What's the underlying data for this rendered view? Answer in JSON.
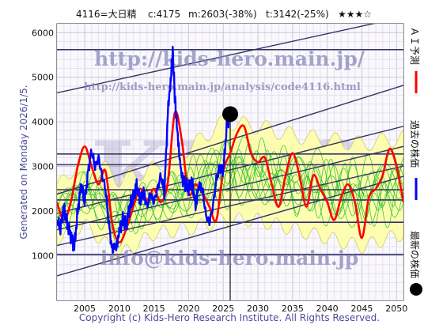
{
  "header": {
    "code_name": "4116=大日精",
    "current": "c:4175",
    "mean": "m:2603(-38%)",
    "target": "t:3142(-25%)",
    "stars": "★★★☆"
  },
  "watermarks": {
    "big": "KIDS",
    "url_main": "http://kids-hero.main.jp/",
    "url_analysis": "http://kids-hero.main.jp/analysis/code4116.html",
    "email": "info@kids-hero.main.jp"
  },
  "side_text": {
    "generated": "Generated on Monday 2026/1/5."
  },
  "legend": {
    "ai_forecast": "ＡＩ予測",
    "past_price": "過去の株価",
    "latest_price": "最新の株価"
  },
  "copyright": "Copyright (c) Kids-Hero Research Institute. All Rights Reserved.",
  "colors": {
    "ai_forecast": "#ff0000",
    "past_price": "#0000ff",
    "latest_price": "#000000",
    "band_fill": "#ffffaa",
    "band_lines": "#22bb22",
    "trend_lines": "#333366",
    "watermark": "#8888bb"
  },
  "chart_data": {
    "type": "line",
    "title": "",
    "xlabel": "",
    "ylabel": "",
    "xlim": [
      2001,
      2051
    ],
    "ylim": [
      0,
      6200
    ],
    "x_ticks": [
      2005,
      2010,
      2015,
      2020,
      2025,
      2030,
      2035,
      2040,
      2045,
      2050
    ],
    "y_ticks": [
      1000,
      2000,
      3000,
      4000,
      5000,
      6000
    ],
    "grid": true,
    "legend_position": "right-vertical",
    "horizontal_levels": [
      5620,
      3280,
      3040,
      2480,
      2250,
      1750,
      1030
    ],
    "vertical_marker_x": 2026.0,
    "latest_point": {
      "x": 2026.0,
      "y": 4175
    },
    "trend_lines": [
      {
        "x": [
          2001,
          2051
        ],
        "y": [
          4650,
          6350
        ]
      },
      {
        "x": [
          2001,
          2051
        ],
        "y": [
          2380,
          4820
        ]
      },
      {
        "x": [
          2001,
          2051
        ],
        "y": [
          1950,
          3900
        ]
      },
      {
        "x": [
          2001,
          2051
        ],
        "y": [
          1580,
          3450
        ]
      },
      {
        "x": [
          2001,
          2051
        ],
        "y": [
          1230,
          3010
        ]
      },
      {
        "x": [
          2001,
          2051
        ],
        "y": [
          550,
          2780
        ]
      }
    ],
    "series": [
      {
        "name": "過去の株価",
        "x": [
          2001.0,
          2001.5,
          2002.0,
          2002.5,
          2003.0,
          2003.5,
          2004.0,
          2004.5,
          2005.0,
          2005.5,
          2006.0,
          2006.5,
          2007.0,
          2007.5,
          2008.0,
          2008.5,
          2009.0,
          2009.3,
          2009.6,
          2010.0,
          2010.5,
          2011.0,
          2011.5,
          2012.0,
          2012.5,
          2013.0,
          2013.5,
          2014.0,
          2014.5,
          2015.0,
          2015.5,
          2016.0,
          2016.5,
          2017.0,
          2017.4,
          2017.7,
          2018.0,
          2018.3,
          2018.7,
          2019.0,
          2019.5,
          2020.0,
          2020.5,
          2021.0,
          2021.5,
          2022.0,
          2022.5,
          2023.0,
          2023.5,
          2024.0,
          2024.5,
          2025.0,
          2025.5,
          2026.0
        ],
        "y": [
          1800,
          1600,
          2100,
          1700,
          1450,
          1200,
          2000,
          2600,
          2200,
          2900,
          3350,
          3000,
          3200,
          2800,
          2500,
          1700,
          1100,
          1250,
          1150,
          1550,
          1800,
          1700,
          2100,
          2300,
          2600,
          2200,
          2450,
          2100,
          2400,
          2200,
          2500,
          2800,
          2400,
          4200,
          4900,
          5600,
          4600,
          3900,
          3200,
          2800,
          2600,
          2500,
          2700,
          2100,
          2600,
          2500,
          1900,
          1750,
          2100,
          2700,
          3000,
          2900,
          3900,
          4175
        ]
      },
      {
        "name": "ＡＩ予測",
        "x": [
          2001,
          2002,
          2003,
          2004,
          2005,
          2006,
          2007,
          2008,
          2009,
          2010,
          2011,
          2012,
          2013,
          2014,
          2015,
          2016,
          2017,
          2018,
          2019,
          2020,
          2021,
          2022,
          2023,
          2024,
          2025,
          2026,
          2027,
          2028,
          2029,
          2030,
          2031,
          2032,
          2033,
          2034,
          2035,
          2036,
          2037,
          2038,
          2039,
          2040,
          2041,
          2042,
          2043,
          2044,
          2045,
          2046,
          2047,
          2048,
          2049,
          2050,
          2051
        ],
        "y": [
          2200,
          1800,
          2200,
          3000,
          3450,
          3000,
          2600,
          2900,
          1700,
          1300,
          1600,
          2100,
          2500,
          2250,
          2500,
          2200,
          2650,
          4200,
          3600,
          2400,
          2600,
          2400,
          2100,
          1800,
          2900,
          3300,
          3750,
          3900,
          3300,
          3100,
          3200,
          2600,
          2100,
          2800,
          3300,
          2800,
          2100,
          2800,
          2500,
          2200,
          1800,
          2300,
          2600,
          2200,
          1400,
          2300,
          2500,
          2800,
          3400,
          3000,
          2200
        ]
      },
      {
        "name": "forecast band upper",
        "x": [
          2001,
          2005,
          2010,
          2015,
          2020,
          2025,
          2030,
          2035,
          2040,
          2045,
          2051
        ],
        "y": [
          2500,
          3300,
          2700,
          2950,
          3400,
          4000,
          3900,
          3700,
          3600,
          3500,
          3650
        ]
      },
      {
        "name": "forecast band lower",
        "x": [
          2001,
          2005,
          2010,
          2015,
          2020,
          2025,
          2030,
          2035,
          2040,
          2045,
          2051
        ],
        "y": [
          1400,
          1700,
          1000,
          1500,
          1600,
          1800,
          1800,
          1600,
          1400,
          1200,
          1500
        ]
      }
    ]
  }
}
